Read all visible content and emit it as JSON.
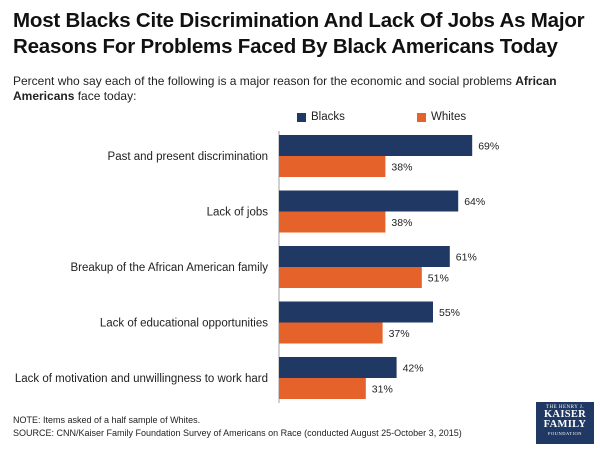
{
  "header": {
    "title": "Most Blacks Cite Discrimination And Lack Of Jobs As Major Reasons For Problems Faced By Black Americans Today",
    "subtitle_prefix": "Percent who say each of the following is a major reason for the economic and social problems ",
    "subtitle_bold": "African Americans",
    "subtitle_suffix": " face today:"
  },
  "colors": {
    "blacks": "#1f3864",
    "whites": "#e5622a"
  },
  "chart_data": {
    "type": "bar",
    "orientation": "horizontal",
    "title": "Most Blacks Cite Discrimination And Lack Of Jobs As Major Reasons For Problems Faced By Black Americans Today",
    "xlabel": "",
    "ylabel": "",
    "xlim": [
      0,
      100
    ],
    "grid": false,
    "legend_position": "top",
    "value_suffix": "%",
    "categories": [
      "Past and present discrimination",
      "Lack of jobs",
      "Breakup of the African American family",
      "Lack of educational opportunities",
      "Lack of motivation and unwillingness to work hard"
    ],
    "series": [
      {
        "name": "Blacks",
        "values": [
          69,
          64,
          61,
          55,
          42
        ]
      },
      {
        "name": "Whites",
        "values": [
          38,
          38,
          51,
          37,
          31
        ]
      }
    ]
  },
  "footer": {
    "note": "NOTE: Items asked of a half sample of Whites.",
    "source": "SOURCE: CNN/Kaiser Family Foundation Survey of Americans on Race (conducted August 25-October 3, 2015)"
  },
  "logo": {
    "line1": "THE HENRY J.",
    "line2": "KAISER",
    "line3": "FAMILY",
    "line4": "FOUNDATION"
  }
}
